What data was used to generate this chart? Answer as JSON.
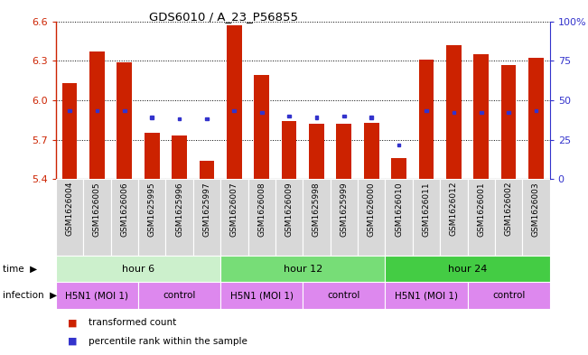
{
  "title": "GDS6010 / A_23_P56855",
  "samples": [
    "GSM1626004",
    "GSM1626005",
    "GSM1626006",
    "GSM1625995",
    "GSM1625996",
    "GSM1625997",
    "GSM1626007",
    "GSM1626008",
    "GSM1626009",
    "GSM1625998",
    "GSM1625999",
    "GSM1626000",
    "GSM1626010",
    "GSM1626011",
    "GSM1626012",
    "GSM1626001",
    "GSM1626002",
    "GSM1626003"
  ],
  "bar_values": [
    6.13,
    6.37,
    6.29,
    5.75,
    5.73,
    5.54,
    6.57,
    6.19,
    5.84,
    5.82,
    5.82,
    5.83,
    5.56,
    6.31,
    6.42,
    6.35,
    6.27,
    6.32
  ],
  "blue_values": [
    5.92,
    5.92,
    5.92,
    5.87,
    5.86,
    5.86,
    5.92,
    5.91,
    5.88,
    5.87,
    5.88,
    5.87,
    5.66,
    5.92,
    5.91,
    5.91,
    5.91,
    5.92
  ],
  "ymin": 5.4,
  "ymax": 6.6,
  "yticks": [
    5.4,
    5.7,
    6.0,
    6.3,
    6.6
  ],
  "right_yticks": [
    0,
    25,
    50,
    75,
    100
  ],
  "right_yticklabels": [
    "0",
    "25",
    "50",
    "75",
    "100%"
  ],
  "bar_color": "#cc2200",
  "blue_color": "#3333cc",
  "bar_width": 0.55,
  "time_groups": [
    {
      "label": "hour 6",
      "start": 0,
      "end": 5,
      "color": "#ccf0cc"
    },
    {
      "label": "hour 12",
      "start": 6,
      "end": 11,
      "color": "#77dd77"
    },
    {
      "label": "hour 24",
      "start": 12,
      "end": 17,
      "color": "#44cc44"
    }
  ],
  "infection_groups": [
    {
      "label": "H5N1 (MOI 1)",
      "start": 0,
      "end": 2
    },
    {
      "label": "control",
      "start": 3,
      "end": 5
    },
    {
      "label": "H5N1 (MOI 1)",
      "start": 6,
      "end": 8
    },
    {
      "label": "control",
      "start": 9,
      "end": 11
    },
    {
      "label": "H5N1 (MOI 1)",
      "start": 12,
      "end": 14
    },
    {
      "label": "control",
      "start": 15,
      "end": 17
    }
  ],
  "infection_color": "#dd88ee",
  "time_label": "time",
  "infection_label": "infection",
  "legend_items": [
    {
      "label": "transformed count",
      "color": "#cc2200"
    },
    {
      "label": "percentile rank within the sample",
      "color": "#3333cc"
    }
  ],
  "title_color": "#333333",
  "xlabel_bg": "#d8d8d8"
}
